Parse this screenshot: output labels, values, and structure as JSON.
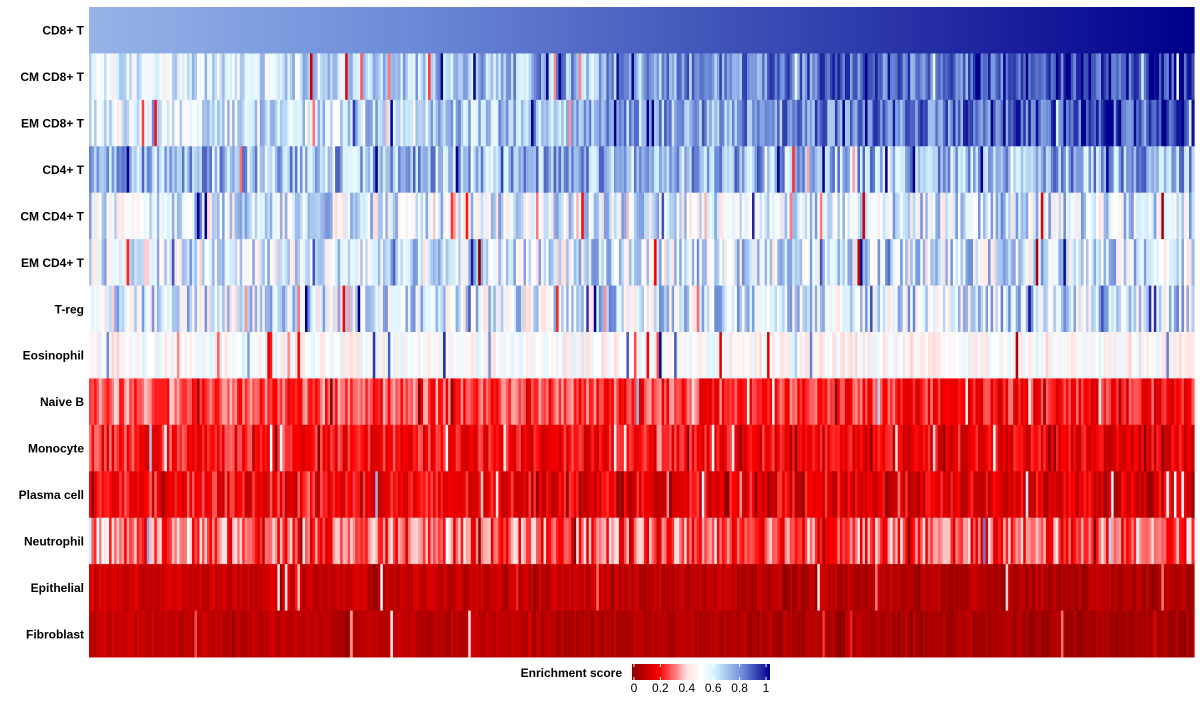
{
  "chart_data": {
    "type": "heatmap",
    "title": "",
    "xlabel": "",
    "ylabel": "",
    "rows": [
      "CD8+ T",
      "CM CD8+ T",
      "EM CD8+ T",
      "CD4+ T",
      "CM CD4+ T",
      "EM CD4+ T",
      "T-reg",
      "Eosinophil",
      "Naive B",
      "Monocyte",
      "Plasma cell",
      "Neutrophil",
      "Epithelial",
      "Fibroblast"
    ],
    "columns_description": "samples ordered by increasing CD8+ T enrichment score (no column labels shown)",
    "n_columns": 440,
    "row_profiles": [
      {
        "row": "CD8+ T",
        "start": 0.72,
        "end": 1.0,
        "noise": 0.0
      },
      {
        "row": "CM CD8+ T",
        "start": 0.55,
        "end": 0.95,
        "noise": 0.14
      },
      {
        "row": "EM CD8+ T",
        "start": 0.55,
        "end": 0.92,
        "noise": 0.14
      },
      {
        "row": "CD4+ T",
        "start": 0.7,
        "end": 0.72,
        "noise": 0.16
      },
      {
        "row": "CM CD4+ T",
        "start": 0.58,
        "end": 0.6,
        "noise": 0.2
      },
      {
        "row": "EM CD4+ T",
        "start": 0.58,
        "end": 0.6,
        "noise": 0.2
      },
      {
        "row": "T-reg",
        "start": 0.58,
        "end": 0.62,
        "noise": 0.2
      },
      {
        "row": "Eosinophil",
        "start": 0.5,
        "end": 0.48,
        "noise": 0.1
      },
      {
        "row": "Naive B",
        "start": 0.3,
        "end": 0.2,
        "noise": 0.1
      },
      {
        "row": "Monocyte",
        "start": 0.22,
        "end": 0.16,
        "noise": 0.09
      },
      {
        "row": "Plasma cell",
        "start": 0.2,
        "end": 0.13,
        "noise": 0.1
      },
      {
        "row": "Neutrophil",
        "start": 0.28,
        "end": 0.28,
        "noise": 0.14
      },
      {
        "row": "Epithelial",
        "start": 0.12,
        "end": 0.06,
        "noise": 0.05
      },
      {
        "row": "Fibroblast",
        "start": 0.1,
        "end": 0.04,
        "noise": 0.04
      }
    ],
    "color_scale": {
      "min": 0,
      "max": 1,
      "stops": [
        {
          "value": 0.0,
          "color": "#8b0000"
        },
        {
          "value": 0.2,
          "color": "#ff0000"
        },
        {
          "value": 0.4,
          "color": "#ffe0e0"
        },
        {
          "value": 0.5,
          "color": "#ffffff"
        },
        {
          "value": 0.6,
          "color": "#d6f2ff"
        },
        {
          "value": 0.8,
          "color": "#6c8bd8"
        },
        {
          "value": 1.0,
          "color": "#00008b"
        }
      ]
    },
    "legend": {
      "title": "Enrichment score",
      "position": "bottom",
      "ticks": [
        "0",
        "0.2",
        "0.4",
        "0.6",
        "0.8",
        "1"
      ]
    }
  }
}
